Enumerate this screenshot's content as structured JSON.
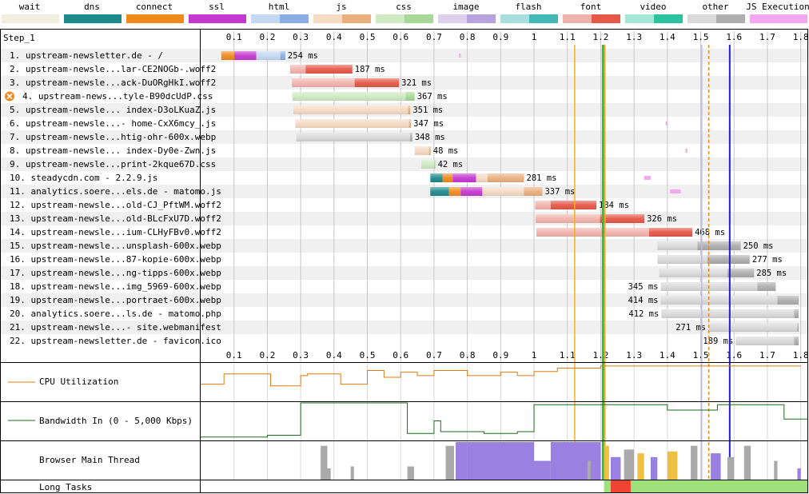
{
  "legend": [
    {
      "label": "wait",
      "light": "#f0efdf",
      "dark": "#f0efdf"
    },
    {
      "label": "dns",
      "light": "#1e8a8c",
      "dark": "#1e8a8c"
    },
    {
      "label": "connect",
      "light": "#f08a1e",
      "dark": "#f08a1e"
    },
    {
      "label": "ssl",
      "light": "#c43ad0",
      "dark": "#c43ad0"
    },
    {
      "label": "html",
      "light": "#c5d8f2",
      "dark": "#89aee6"
    },
    {
      "label": "js",
      "light": "#f5dac4",
      "dark": "#e9b07e"
    },
    {
      "label": "css",
      "light": "#cfe9c3",
      "dark": "#a8d897"
    },
    {
      "label": "image",
      "light": "#ddd0ee",
      "dark": "#b9a3de"
    },
    {
      "label": "flash",
      "light": "#a8dede",
      "dark": "#45b7b9"
    },
    {
      "label": "font",
      "light": "#f2b3ac",
      "dark": "#e65848"
    },
    {
      "label": "video",
      "light": "#a6e6d4",
      "dark": "#2cc29f"
    },
    {
      "label": "other",
      "light": "#d9d9d9",
      "dark": "#aeaeae"
    },
    {
      "label": "JS Execution",
      "light": "#f5a8f0",
      "dark": "#f5a8f0"
    }
  ],
  "step_label": "Step_1",
  "chart_data": {
    "type": "waterfall",
    "x_unit": "s",
    "x_ticks": [
      0.1,
      0.2,
      0.3,
      0.4,
      0.5,
      0.6,
      0.7,
      0.8,
      0.9,
      1.0,
      1.1,
      1.2,
      1.3,
      1.4,
      1.5,
      1.6,
      1.7,
      1.8
    ],
    "xlim": [
      0,
      1.82
    ],
    "markers": [
      {
        "t": 1.122,
        "color": "#f0b020",
        "width": 1.5
      },
      {
        "t": 1.207,
        "color": "#3cb83c",
        "width": 3
      },
      {
        "t": 1.213,
        "color": "#f0b020",
        "width": 1.5
      },
      {
        "t": 1.503,
        "color": "#b9b9f5",
        "width": 1.5
      },
      {
        "t": 1.524,
        "color": "#f08a1e",
        "width": 1.5,
        "dash": true
      },
      {
        "t": 1.587,
        "color": "#2020d0",
        "width": 2
      }
    ],
    "requests": [
      {
        "label": "1. upstream-newsletter.de - /",
        "type": "html",
        "duration": "254 ms",
        "wait": [
          0,
          0
        ],
        "dns": [
          0,
          0.062
        ],
        "connect": [
          0.062,
          0.101
        ],
        "ssl": [
          0.101,
          0.167
        ],
        "ttfb": [
          0.167,
          0.239
        ],
        "download": [
          0.239,
          0.254
        ],
        "js": [
          [
            0.775,
            0.778
          ]
        ]
      },
      {
        "label": "2. upstream-newsle...lar-CE2NOGb-.woff2",
        "type": "font",
        "duration": "187 ms",
        "wait": [
          0,
          0
        ],
        "ttfb": [
          0.268,
          0.315
        ],
        "download": [
          0.315,
          0.455
        ]
      },
      {
        "label": "3. upstream-newsle...ack-DuORgHkI.woff2",
        "type": "font",
        "duration": "321 ms",
        "wait": [
          0,
          0
        ],
        "ttfb": [
          0.274,
          0.462
        ],
        "download": [
          0.462,
          0.595
        ]
      },
      {
        "label": "4. upstream-news...tyle-B90dcUdP.css",
        "type": "css",
        "duration": "367 ms",
        "error": true,
        "wait": [
          0,
          0
        ],
        "ttfb": [
          0.275,
          0.615
        ],
        "download": [
          0.615,
          0.642
        ]
      },
      {
        "label": "5. upstream-newsle... index-D3oLKuaZ.js",
        "type": "js",
        "duration": "351 ms",
        "wait": [
          0,
          0
        ],
        "ttfb": [
          0.278,
          0.622
        ],
        "download": [
          0.622,
          0.629
        ]
      },
      {
        "label": "6. upstream-newsle...- home-CxX6mcy_.js",
        "type": "js",
        "duration": "347 ms",
        "wait": [
          0,
          0
        ],
        "ttfb": [
          0.284,
          0.625
        ],
        "download": [
          0.625,
          0.631
        ],
        "js": [
          [
            1.395,
            1.4
          ]
        ]
      },
      {
        "label": "7. upstream-newsle...htig-ohr-600x.webp",
        "type": "other",
        "duration": "348 ms",
        "wait": [
          0,
          0
        ],
        "ttfb": [
          0.287,
          0.628
        ],
        "download": [
          0.628,
          0.635
        ]
      },
      {
        "label": "8. upstream-newsle... index-Dy0e-Zwn.js",
        "type": "js",
        "duration": "48 ms",
        "wait": [
          0,
          0
        ],
        "ttfb": [
          0.642,
          0.685
        ],
        "download": [
          0.685,
          0.69
        ],
        "js": [
          [
            1.454,
            1.46
          ]
        ]
      },
      {
        "label": "9. upstream-newsle...print-2kque67D.css",
        "type": "css",
        "duration": "42 ms",
        "wait": [
          0,
          0
        ],
        "ttfb": [
          0.662,
          0.7
        ],
        "download": [
          0.7,
          0.704
        ]
      },
      {
        "label": "10. steadycdn.com - 2.2.9.js",
        "type": "js",
        "duration": "281 ms",
        "wait": [
          0,
          0
        ],
        "dns": [
          0.689,
          0.726
        ],
        "connect": [
          0.726,
          0.756
        ],
        "ssl": [
          0.756,
          0.826
        ],
        "ttfb": [
          0.826,
          0.861
        ],
        "download": [
          0.861,
          0.97
        ],
        "js": [
          [
            1.33,
            1.35
          ]
        ]
      },
      {
        "label": "11. analytics.soere...els.de - matomo.js",
        "type": "js",
        "duration": "337 ms",
        "wait": [
          0,
          0
        ],
        "dns": [
          0.689,
          0.745
        ],
        "connect": [
          0.745,
          0.78
        ],
        "ssl": [
          0.78,
          0.845
        ],
        "ttfb": [
          0.845,
          0.97
        ],
        "download": [
          0.97,
          1.025
        ],
        "js": [
          [
            1.408,
            1.44
          ]
        ]
      },
      {
        "label": "12. upstream-newsle...old-CJ_PftWM.woff2",
        "type": "font",
        "duration": "184 ms",
        "wait": [
          0,
          0
        ],
        "ttfb": [
          1.003,
          1.05
        ],
        "download": [
          1.05,
          1.187
        ]
      },
      {
        "label": "13. upstream-newsle...old-BLcFxU7D.woff2",
        "type": "font",
        "duration": "326 ms",
        "wait": [
          0,
          0
        ],
        "ttfb": [
          1.005,
          1.198
        ],
        "download": [
          1.198,
          1.331
        ]
      },
      {
        "label": "14. upstream-newsle...ium-CLHyFBv0.woff2",
        "type": "font",
        "duration": "468 ms",
        "wait": [
          0,
          0
        ],
        "ttfb": [
          1.007,
          1.345
        ],
        "download": [
          1.345,
          1.475
        ]
      },
      {
        "label": "15. upstream-newsle...unsplash-600x.webp",
        "type": "other",
        "duration": "250 ms",
        "wait": [
          0,
          0
        ],
        "ttfb": [
          1.37,
          1.49
        ],
        "download": [
          1.49,
          1.62
        ]
      },
      {
        "label": "16. upstream-newsle...87-kopie-600x.webp",
        "type": "other",
        "duration": "277 ms",
        "wait": [
          0,
          0
        ],
        "ttfb": [
          1.37,
          1.52
        ],
        "download": [
          1.52,
          1.647
        ]
      },
      {
        "label": "17. upstream-newsle...ng-tipps-600x.webp",
        "type": "other",
        "duration": "285 ms",
        "wait": [
          0,
          0
        ],
        "ttfb": [
          1.375,
          1.58
        ],
        "download": [
          1.58,
          1.66
        ]
      },
      {
        "label": "18. upstream-newsle...img_5969-600x.webp",
        "type": "other",
        "duration": "345 ms",
        "wait": [
          0,
          0
        ],
        "ttfb": [
          1.38,
          1.67
        ],
        "download": [
          1.67,
          1.725
        ]
      },
      {
        "label": "19. upstream-newsle...portraet-600x.webp",
        "type": "other",
        "duration": "414 ms",
        "wait": [
          0,
          0
        ],
        "ttfb": [
          1.38,
          1.73
        ],
        "download": [
          1.73,
          1.794
        ]
      },
      {
        "label": "20. analytics.soere...ls.de - matomo.php",
        "type": "other",
        "duration": "412 ms",
        "wait": [
          0,
          0
        ],
        "ttfb": [
          1.382,
          1.78
        ],
        "download": [
          1.78,
          1.794
        ]
      },
      {
        "label": "21. upstream-newsle...- site.webmanifest",
        "type": "other",
        "duration": "271 ms",
        "wait": [
          0,
          0
        ],
        "ttfb": [
          1.523,
          1.79
        ],
        "download": [
          1.79,
          1.794
        ]
      },
      {
        "label": "22. upstream-newsletter.de - favicon.ico",
        "type": "other",
        "duration": "189 ms",
        "wait": [
          0,
          0
        ],
        "ttfb": [
          1.605,
          1.78
        ],
        "download": [
          1.78,
          1.794
        ]
      }
    ],
    "cpu": {
      "label": "CPU Utilization",
      "color": "#e07a10",
      "points": [
        [
          0,
          0.45
        ],
        [
          0.07,
          0.45
        ],
        [
          0.07,
          0.75
        ],
        [
          0.21,
          0.75
        ],
        [
          0.21,
          0.4
        ],
        [
          0.3,
          0.4
        ],
        [
          0.3,
          0.7
        ],
        [
          0.32,
          0.7
        ],
        [
          0.32,
          0.75
        ],
        [
          0.42,
          0.75
        ],
        [
          0.42,
          0.45
        ],
        [
          0.5,
          0.45
        ],
        [
          0.5,
          0.85
        ],
        [
          0.55,
          0.85
        ],
        [
          0.55,
          0.65
        ],
        [
          0.6,
          0.65
        ],
        [
          0.6,
          0.8
        ],
        [
          0.65,
          0.8
        ],
        [
          0.65,
          0.7
        ],
        [
          0.7,
          0.7
        ],
        [
          0.7,
          0.85
        ],
        [
          0.8,
          0.85
        ],
        [
          0.8,
          0.7
        ],
        [
          0.9,
          0.7
        ],
        [
          0.9,
          0.8
        ],
        [
          0.95,
          0.8
        ],
        [
          0.95,
          0.7
        ],
        [
          1.0,
          0.7
        ],
        [
          1.0,
          0.82
        ],
        [
          1.07,
          0.82
        ],
        [
          1.07,
          0.92
        ],
        [
          1.2,
          0.92
        ],
        [
          1.2,
          0.98
        ],
        [
          1.8,
          0.98
        ]
      ]
    },
    "bandwidth": {
      "label": "Bandwidth In (0 - 5,000 Kbps)",
      "color": "#1c6b1c",
      "points": [
        [
          0,
          0.05
        ],
        [
          0.2,
          0.05
        ],
        [
          0.2,
          0.1
        ],
        [
          0.3,
          0.1
        ],
        [
          0.3,
          1.0
        ],
        [
          0.62,
          1.0
        ],
        [
          0.62,
          0.15
        ],
        [
          0.7,
          0.15
        ],
        [
          0.7,
          0.5
        ],
        [
          0.72,
          0.5
        ],
        [
          0.72,
          0.2
        ],
        [
          0.85,
          0.2
        ],
        [
          0.85,
          0.15
        ],
        [
          0.95,
          0.15
        ],
        [
          0.95,
          0.2
        ],
        [
          1.0,
          0.2
        ],
        [
          1.0,
          0.95
        ],
        [
          1.4,
          0.95
        ],
        [
          1.4,
          0.8
        ],
        [
          1.55,
          0.8
        ],
        [
          1.55,
          0.95
        ],
        [
          1.75,
          0.95
        ],
        [
          1.75,
          0.55
        ],
        [
          1.82,
          0.55
        ]
      ]
    },
    "main_thread": {
      "label": "Browser Main Thread",
      "segments": [
        {
          "start": 0.36,
          "end": 0.38,
          "height": 0.9,
          "color": "#aaaaaa"
        },
        {
          "start": 0.38,
          "end": 0.39,
          "height": 0.3,
          "color": "#aaaaaa"
        },
        {
          "start": 0.45,
          "end": 0.46,
          "height": 0.35,
          "color": "#aaaaaa"
        },
        {
          "start": 0.62,
          "end": 0.64,
          "height": 0.35,
          "color": "#aaaaaa"
        },
        {
          "start": 0.735,
          "end": 0.76,
          "height": 0.9,
          "color": "#aaaaaa"
        },
        {
          "start": 0.765,
          "end": 0.8,
          "height": 1.0,
          "color": "#9a80e0"
        },
        {
          "start": 0.8,
          "end": 1.0,
          "height": 1.0,
          "color": "#9a80e0"
        },
        {
          "start": 1.0,
          "end": 1.05,
          "height": 0.5,
          "color": "#9a80e0"
        },
        {
          "start": 1.05,
          "end": 1.2,
          "height": 1.0,
          "color": "#9a80e0"
        },
        {
          "start": 1.16,
          "end": 1.17,
          "height": 0.5,
          "color": "#aaaaaa"
        },
        {
          "start": 1.21,
          "end": 1.225,
          "height": 0.9,
          "color": "#f0c040"
        },
        {
          "start": 1.23,
          "end": 1.26,
          "height": 0.6,
          "color": "#9a80e0"
        },
        {
          "start": 1.27,
          "end": 1.3,
          "height": 0.8,
          "color": "#aaaaaa"
        },
        {
          "start": 1.31,
          "end": 1.33,
          "height": 0.7,
          "color": "#f0c040"
        },
        {
          "start": 1.35,
          "end": 1.37,
          "height": 0.6,
          "color": "#9a80e0"
        },
        {
          "start": 1.4,
          "end": 1.43,
          "height": 0.75,
          "color": "#f0c040"
        },
        {
          "start": 1.47,
          "end": 1.49,
          "height": 0.9,
          "color": "#aaaaaa"
        },
        {
          "start": 1.53,
          "end": 1.56,
          "height": 0.7,
          "color": "#9a80e0"
        },
        {
          "start": 1.58,
          "end": 1.6,
          "height": 0.6,
          "color": "#aaaaaa"
        },
        {
          "start": 1.63,
          "end": 1.65,
          "height": 0.9,
          "color": "#aaaaaa"
        },
        {
          "start": 1.72,
          "end": 1.73,
          "height": 0.5,
          "color": "#aaaaaa"
        },
        {
          "start": 1.79,
          "end": 1.8,
          "height": 0.3,
          "color": "#9a80e0"
        }
      ]
    },
    "long_tasks": {
      "label": "Long Tasks",
      "segments": [
        {
          "start": 1.21,
          "end": 1.23,
          "color": "#9ee07a"
        },
        {
          "start": 1.23,
          "end": 1.29,
          "color": "#ef4434"
        },
        {
          "start": 1.29,
          "end": 1.82,
          "color": "#9ee07a"
        }
      ]
    }
  }
}
